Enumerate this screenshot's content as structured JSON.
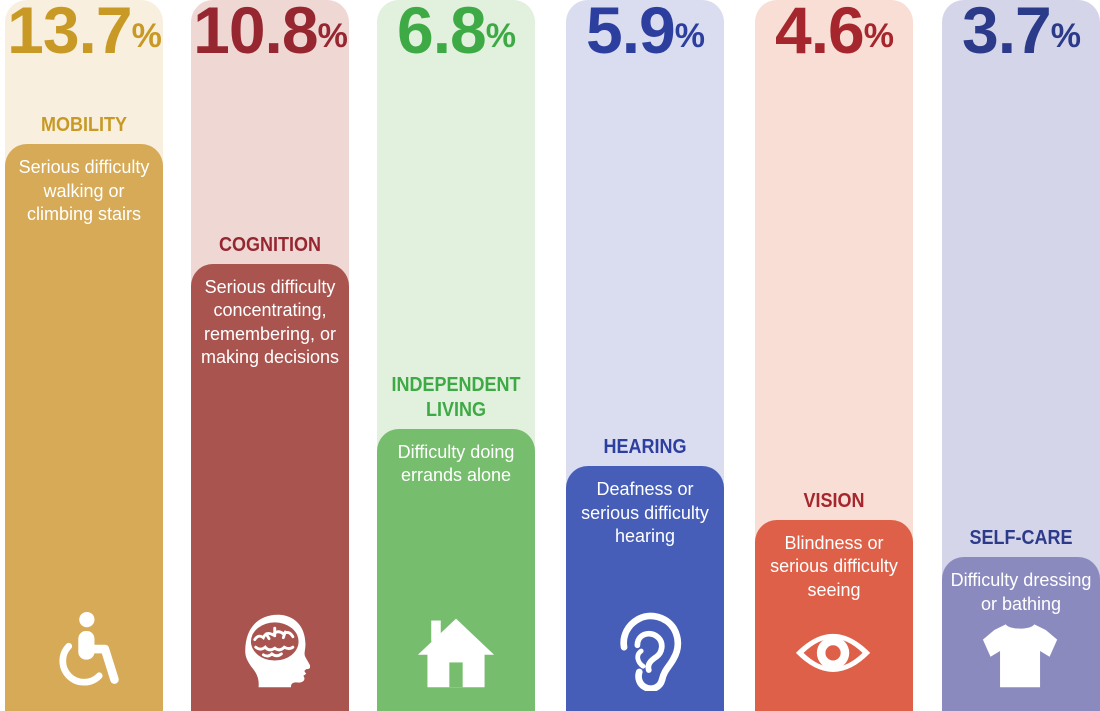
{
  "chart_data": {
    "type": "bar",
    "unit": "%",
    "ylim": [
      0,
      13.7
    ],
    "categories": [
      "MOBILITY",
      "COGNITION",
      "INDEPENDENT LIVING",
      "HEARING",
      "VISION",
      "SELF-CARE"
    ],
    "values": [
      13.7,
      10.8,
      6.8,
      5.9,
      4.6,
      3.7
    ],
    "value_labels": [
      "13.7",
      "10.8",
      "6.8",
      "5.9",
      "4.6",
      "3.7"
    ],
    "bars": [
      {
        "label_lines": [
          "MOBILITY"
        ],
        "description": "Serious difficulty walking or climbing stairs",
        "icon": "wheelchair-icon",
        "color": "#D6AA56",
        "light": "#F8EFDF",
        "text": "#C89A25"
      },
      {
        "label_lines": [
          "COGNITION"
        ],
        "description": "Serious difficulty concentrating, remembering, or making decisions",
        "icon": "brain-head-icon",
        "color": "#A9544F",
        "light": "#EFD7D4",
        "text": "#962630"
      },
      {
        "label_lines": [
          "INDEPENDENT",
          "LIVING"
        ],
        "description": "Difficulty doing errands alone",
        "icon": "house-icon",
        "color": "#76BD6E",
        "light": "#E2F0DE",
        "text": "#3EAA45"
      },
      {
        "label_lines": [
          "HEARING"
        ],
        "description": "Deafness or serious difficulty hearing",
        "icon": "ear-icon",
        "color": "#465EB7",
        "light": "#DADCF0",
        "text": "#2D3F9E"
      },
      {
        "label_lines": [
          "VISION"
        ],
        "description": "Blindness or serious difficulty seeing",
        "icon": "eye-icon",
        "color": "#DF6048",
        "light": "#F8DED4",
        "text": "#A5262C"
      },
      {
        "label_lines": [
          "SELF-CARE"
        ],
        "description": "Difficulty dressing or bathing",
        "icon": "shirt-icon",
        "color": "#8B8ABF",
        "light": "#D5D5EA",
        "text": "#2C3A8A"
      }
    ]
  }
}
